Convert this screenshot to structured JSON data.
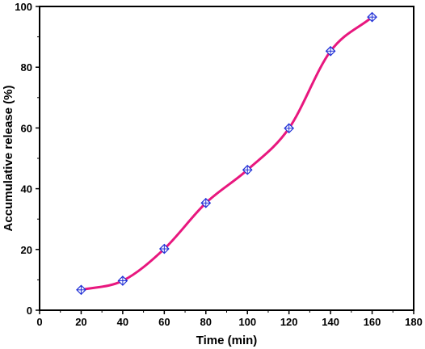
{
  "chart_data": {
    "type": "line",
    "title": "",
    "xlabel": "Time (min)",
    "ylabel": "Accumulative release (%)",
    "xlim": [
      0,
      180
    ],
    "ylim": [
      0,
      100
    ],
    "xticks": [
      0,
      20,
      40,
      60,
      80,
      100,
      120,
      140,
      160,
      180
    ],
    "yticks": [
      0,
      20,
      40,
      60,
      80,
      100
    ],
    "grid": false,
    "legend": "none",
    "series": [
      {
        "line_color": "#e8177e",
        "marker": "diamond-cross",
        "marker_color": "#1f2fd6",
        "smooth": true,
        "x": [
          20,
          40,
          60,
          80,
          100,
          120,
          140,
          160
        ],
        "y": [
          6.7,
          9.7,
          20.2,
          35.3,
          46.2,
          59.9,
          85.3,
          96.5
        ]
      }
    ]
  }
}
